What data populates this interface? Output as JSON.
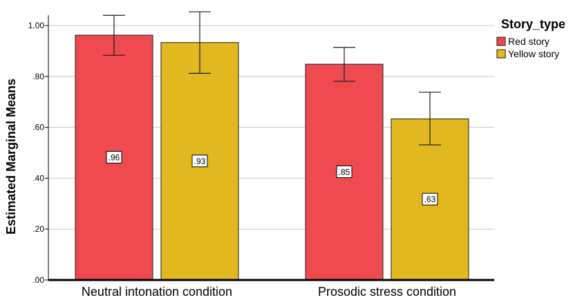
{
  "chart_data": {
    "type": "bar",
    "title": "",
    "xlabel": "",
    "ylabel": "Estimated Marginal Means",
    "ylim": [
      0,
      1.0
    ],
    "yticks": [
      0.0,
      0.2,
      0.4,
      0.6,
      0.8,
      1.0
    ],
    "ytick_labels": [
      ".00",
      ".20",
      ".40",
      ".60",
      ".80",
      "1.00"
    ],
    "grid": true,
    "categories": [
      "Neutral intonation condition",
      "Prosodic stress condition"
    ],
    "legend": {
      "title": "Story_type",
      "placement": "top-right"
    },
    "series": [
      {
        "name": "Red story",
        "color": "#ee4a4f",
        "values": [
          0.962,
          0.848
        ],
        "labels": [
          ".96",
          ".85"
        ],
        "error_low": [
          0.883,
          0.781
        ],
        "error_high": [
          1.04,
          0.914
        ]
      },
      {
        "name": "Yellow story",
        "color": "#e2b820",
        "values": [
          0.933,
          0.633
        ],
        "labels": [
          ".93",
          ".63"
        ],
        "error_low": [
          0.812,
          0.531
        ],
        "error_high": [
          1.054,
          0.738
        ]
      }
    ]
  }
}
